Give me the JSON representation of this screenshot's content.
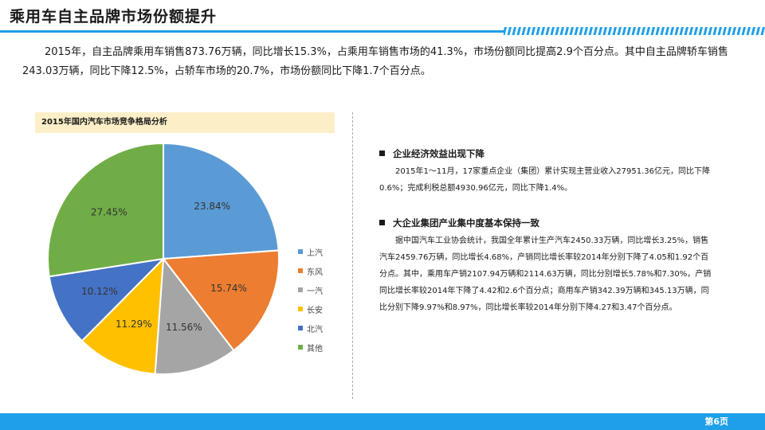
{
  "header": {
    "title": "乘用车自主品牌市场份额提升"
  },
  "intro_text": "2015年，自主品牌乘用车销售873.76万辆，同比增长15.3%，占乘用车销售市场的41.3%，市场份额同比提高2.9个百分点。其中自主品牌轿车销售243.03万辆，同比下降12.5%，占轿车市场的20.7%，市场份额同比下降1.7个百分点。",
  "chart_panel": {
    "heading": "2015年国内汽车市场竞争格局分析"
  },
  "chart_data": {
    "type": "pie",
    "title": "2015年国内汽车市场竞争格局分析",
    "categories": [
      "上汽",
      "东风",
      "一汽",
      "长安",
      "北汽",
      "其他"
    ],
    "values": [
      23.84,
      15.74,
      11.56,
      11.29,
      10.12,
      27.45
    ],
    "labels": [
      "23.84%",
      "15.74%",
      "11.56%",
      "11.29%",
      "10.12%",
      "27.45%"
    ],
    "colors": [
      "#5b9bd5",
      "#ed7d31",
      "#a5a5a5",
      "#ffc000",
      "#4472c4",
      "#70ad47"
    ],
    "legend_position": "right",
    "start": "12 o'clock, clockwise"
  },
  "sections": [
    {
      "title": "企业经济效益出现下降",
      "body": "2015年1～11月，17家重点企业（集团）累计实现主营业收入27951.36亿元，同比下降0.6%；完成利税总额4930.96亿元，同比下降1.4%。"
    },
    {
      "title": "大企业集团产业集中度基本保持一致",
      "body": "据中国汽车工业协会统计，我国全年累计生产汽车2450.33万辆，同比增长3.25%，销售汽车2459.76万辆，同比增长4.68%，产销同比增长率较2014年分别下降了4.05和1.92个百分点。其中，乘用车产销2107.94万辆和2114.63万辆，同比分别增长5.78%和7.30%，产销同比增长率较2014年下降了4.42和2.6个百分点；商用车产销342.39万辆和345.13万辆，同比分别下降9.97%和8.97%，同比增长率较2014年分别下降4.27和3.47个百分点。"
    }
  ],
  "footer": {
    "page_label": "第6页",
    "accent_color": "#1e9fe8"
  }
}
